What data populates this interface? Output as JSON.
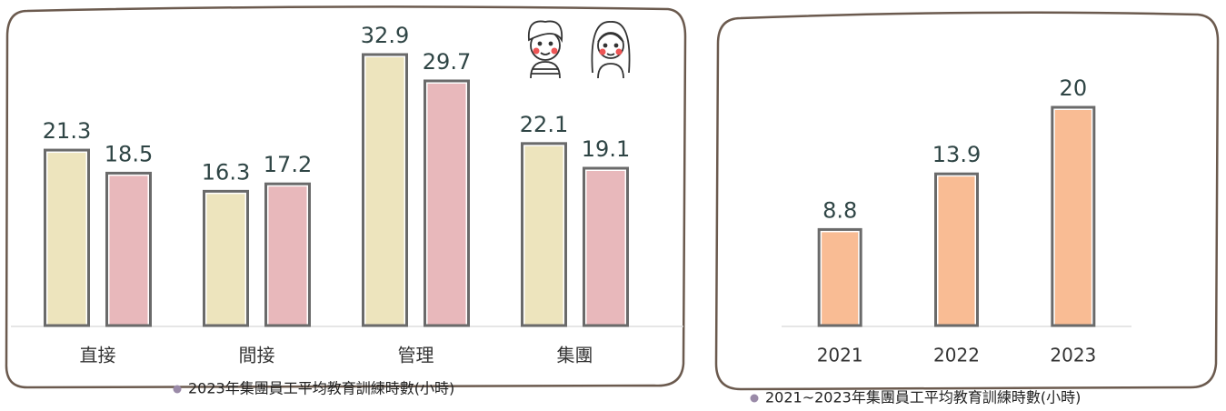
{
  "chart_data": [
    {
      "type": "bar",
      "title": "2023年集團員工平均教育訓練時數(小時)",
      "categories": [
        "直接",
        "間接",
        "管理",
        "集團"
      ],
      "series": [
        {
          "color": "#ede4bd",
          "values": [
            21.3,
            16.3,
            32.9,
            22.1
          ]
        },
        {
          "color": "#e8b8bb",
          "values": [
            18.5,
            17.2,
            29.7,
            19.1
          ]
        }
      ]
    },
    {
      "type": "bar",
      "title": "2021~2023年集團員工平均教育訓練時數(小時)",
      "categories": [
        "2021",
        "2022",
        "2023"
      ],
      "values": [
        8.8,
        13.9,
        20
      ],
      "color": "#f9bc94"
    }
  ]
}
